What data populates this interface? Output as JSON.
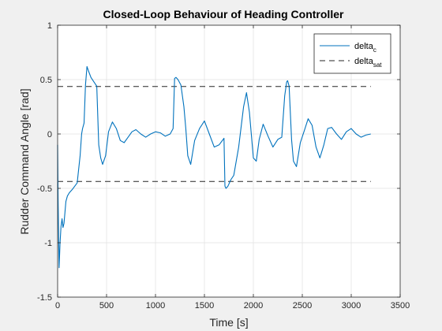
{
  "chart_data": {
    "type": "line",
    "title": "Closed-Loop Behaviour of Heading Controller",
    "xlabel": "Time [s]",
    "ylabel": "Rudder Command Angle [rad]",
    "xlim": [
      0,
      3500
    ],
    "ylim": [
      -1.5,
      1
    ],
    "xticks": [
      0,
      500,
      1000,
      1500,
      2000,
      2500,
      3000,
      3500
    ],
    "yticks": [
      -1.5,
      -1,
      -0.5,
      0,
      0.5,
      1
    ],
    "xtick_labels": [
      "0",
      "500",
      "1000",
      "1500",
      "2000",
      "2500",
      "3000",
      "3500"
    ],
    "ytick_labels": [
      "-1.5",
      "-1",
      "-0.5",
      "0",
      "0.5",
      "1"
    ],
    "grid": true,
    "legend_position": "top-right",
    "legend": [
      {
        "base": "delta",
        "sub": "c",
        "style": "solid",
        "color": "#0072BD"
      },
      {
        "base": "delta",
        "sub": "sat",
        "style": "dashed",
        "color": "#262626"
      }
    ],
    "series": [
      {
        "name": "delta_c",
        "color": "#0072BD",
        "style": "solid",
        "x": [
          0,
          5,
          15,
          25,
          35,
          45,
          55,
          65,
          75,
          85,
          100,
          120,
          150,
          200,
          230,
          245,
          255,
          270,
          285,
          300,
          315,
          340,
          370,
          400,
          420,
          440,
          460,
          490,
          520,
          560,
          600,
          640,
          680,
          720,
          760,
          800,
          850,
          900,
          950,
          1000,
          1050,
          1100,
          1150,
          1180,
          1195,
          1210,
          1230,
          1260,
          1290,
          1310,
          1330,
          1360,
          1400,
          1450,
          1500,
          1550,
          1600,
          1650,
          1700,
          1710,
          1720,
          1740,
          1770,
          1800,
          1850,
          1900,
          1930,
          1960,
          2000,
          2030,
          2060,
          2100,
          2150,
          2200,
          2250,
          2290,
          2320,
          2340,
          2350,
          2365,
          2390,
          2410,
          2440,
          2480,
          2520,
          2560,
          2600,
          2640,
          2680,
          2720,
          2760,
          2800,
          2850,
          2900,
          2950,
          3000,
          3050,
          3100,
          3150,
          3200
        ],
        "y": [
          -0.1,
          -0.6,
          -1.23,
          -1.0,
          -0.85,
          -0.78,
          -0.86,
          -0.82,
          -0.72,
          -0.62,
          -0.57,
          -0.54,
          -0.51,
          -0.45,
          -0.2,
          0.0,
          0.05,
          0.1,
          0.45,
          0.62,
          0.58,
          0.52,
          0.48,
          0.44,
          -0.1,
          -0.22,
          -0.28,
          -0.2,
          0.02,
          0.11,
          0.05,
          -0.06,
          -0.08,
          -0.03,
          0.02,
          0.04,
          0.0,
          -0.03,
          0.0,
          0.02,
          0.01,
          -0.02,
          0.0,
          0.05,
          0.51,
          0.52,
          0.5,
          0.45,
          0.25,
          0.05,
          -0.2,
          -0.28,
          -0.06,
          0.05,
          0.12,
          0.0,
          -0.12,
          -0.1,
          -0.04,
          -0.48,
          -0.5,
          -0.48,
          -0.42,
          -0.38,
          -0.12,
          0.25,
          0.38,
          0.2,
          -0.22,
          -0.25,
          -0.05,
          0.09,
          -0.02,
          -0.12,
          -0.05,
          -0.03,
          0.35,
          0.48,
          0.49,
          0.44,
          -0.05,
          -0.25,
          -0.3,
          -0.08,
          0.03,
          0.14,
          0.08,
          -0.12,
          -0.22,
          -0.1,
          0.05,
          0.06,
          0.0,
          -0.05,
          0.02,
          0.05,
          0.0,
          -0.03,
          -0.01,
          0.0
        ]
      },
      {
        "name": "delta_sat_upper",
        "color": "#262626",
        "style": "dashed",
        "x": [
          0,
          3200
        ],
        "y": [
          0.4363,
          0.4363
        ]
      },
      {
        "name": "delta_sat_lower",
        "color": "#262626",
        "style": "dashed",
        "x": [
          0,
          3200
        ],
        "y": [
          -0.4363,
          -0.4363
        ]
      }
    ]
  }
}
